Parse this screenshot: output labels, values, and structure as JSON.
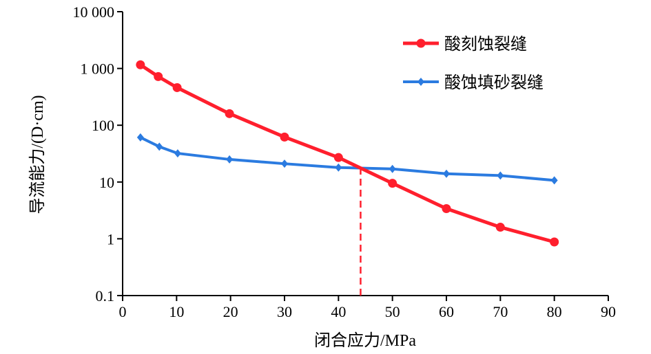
{
  "chart_data": {
    "type": "line",
    "title": "",
    "xlabel": "闭合应力/MPa",
    "ylabel": "导流能力/(D·cm)",
    "xlim": [
      0,
      90
    ],
    "ylim": [
      0.1,
      10000
    ],
    "yscale": "log",
    "xticks": [
      0,
      10,
      20,
      30,
      40,
      50,
      60,
      70,
      80,
      90
    ],
    "xtick_labels": [
      "0",
      "10",
      "20",
      "30",
      "40",
      "50",
      "60",
      "70",
      "80",
      "90"
    ],
    "yticks": [
      0.1,
      1,
      10,
      100,
      1000,
      10000
    ],
    "ytick_labels": [
      "0.1",
      "1",
      "10",
      "100",
      "1 000",
      "10 000"
    ],
    "grid": false,
    "legend_position": "top-right",
    "series": [
      {
        "name": "酸刻蚀裂缝",
        "color": "#ff1f2d",
        "marker": "circle",
        "x": [
          3.3,
          6.6,
          10.1,
          19.8,
          30,
          40,
          50,
          60,
          70,
          80
        ],
        "y": [
          1160,
          720,
          460,
          160,
          62,
          27,
          9.5,
          3.4,
          1.6,
          0.88
        ]
      },
      {
        "name": "酸蚀填砂裂缝",
        "color": "#2b7be0",
        "marker": "diamond",
        "x": [
          3.3,
          6.8,
          10.2,
          19.8,
          30,
          40,
          50,
          60,
          70,
          80
        ],
        "y": [
          61,
          42,
          32,
          25,
          21,
          18,
          17,
          14,
          13,
          10.7
        ]
      }
    ],
    "annotations": [
      {
        "type": "vertical-dashed-line",
        "x": 44.1,
        "y_top": 18,
        "color": "#ff1f2d"
      }
    ]
  }
}
